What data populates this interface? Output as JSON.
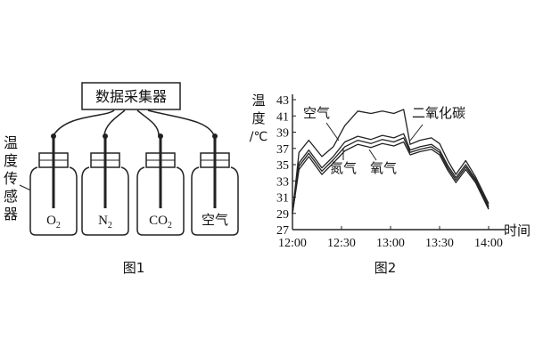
{
  "figure1": {
    "collector_label": "数据采集器",
    "sensor_label_chars": [
      "温",
      "度",
      "传",
      "感",
      "器"
    ],
    "bottles": [
      {
        "main": "O",
        "sub": "2"
      },
      {
        "main": "N",
        "sub": "2"
      },
      {
        "main": "CO",
        "sub": "2"
      },
      {
        "main": "空气",
        "sub": ""
      }
    ],
    "caption": "图1"
  },
  "figure2": {
    "caption": "图2",
    "chart_data": {
      "type": "line",
      "ylabel_chars": [
        "温",
        "度"
      ],
      "yunit": "/℃",
      "xlabel": "时间",
      "x_ticks": [
        "12:00",
        "12:30",
        "13:00",
        "13:30",
        "14:00"
      ],
      "y_ticks": [
        27,
        29,
        31,
        33,
        35,
        37,
        39,
        41,
        43
      ],
      "xlim": [
        "12:00",
        "14:00"
      ],
      "ylim": [
        27,
        43
      ],
      "series": [
        {
          "name": "二氧化碳",
          "color": "#222222",
          "points": [
            [
              "12:00",
              29.0
            ],
            [
              "12:04",
              36.5
            ],
            [
              "12:10",
              38.0
            ],
            [
              "12:18",
              36.0
            ],
            [
              "12:25",
              37.2
            ],
            [
              "12:32",
              39.8
            ],
            [
              "12:40",
              41.6
            ],
            [
              "12:48",
              41.3
            ],
            [
              "12:55",
              41.6
            ],
            [
              "13:02",
              41.3
            ],
            [
              "13:08",
              41.8
            ],
            [
              "13:12",
              37.5
            ],
            [
              "13:18",
              38.0
            ],
            [
              "13:25",
              38.3
            ],
            [
              "13:30",
              37.6
            ],
            [
              "13:35",
              35.5
            ],
            [
              "13:40",
              33.8
            ],
            [
              "13:46",
              35.5
            ],
            [
              "13:52",
              33.5
            ],
            [
              "14:00",
              30.2
            ]
          ]
        },
        {
          "name": "空气",
          "color": "#222222",
          "points": [
            [
              "12:00",
              29.0
            ],
            [
              "12:04",
              35.2
            ],
            [
              "12:10",
              36.8
            ],
            [
              "12:18",
              34.6
            ],
            [
              "12:25",
              36.0
            ],
            [
              "12:32",
              37.8
            ],
            [
              "12:40",
              38.5
            ],
            [
              "12:48",
              38.1
            ],
            [
              "12:55",
              38.6
            ],
            [
              "13:02",
              38.3
            ],
            [
              "13:08",
              38.8
            ],
            [
              "13:12",
              36.8
            ],
            [
              "13:18",
              37.2
            ],
            [
              "13:25",
              37.5
            ],
            [
              "13:30",
              36.8
            ],
            [
              "13:35",
              34.9
            ],
            [
              "13:40",
              33.4
            ],
            [
              "13:46",
              35.0
            ],
            [
              "13:52",
              33.2
            ],
            [
              "14:00",
              29.9
            ]
          ]
        },
        {
          "name": "氮气",
          "color": "#222222",
          "points": [
            [
              "12:00",
              29.0
            ],
            [
              "12:04",
              34.8
            ],
            [
              "12:10",
              36.4
            ],
            [
              "12:18",
              34.2
            ],
            [
              "12:25",
              35.6
            ],
            [
              "12:32",
              37.2
            ],
            [
              "12:40",
              38.0
            ],
            [
              "12:48",
              37.6
            ],
            [
              "12:55",
              38.1
            ],
            [
              "13:02",
              37.8
            ],
            [
              "13:08",
              38.3
            ],
            [
              "13:12",
              36.5
            ],
            [
              "13:18",
              36.9
            ],
            [
              "13:25",
              37.2
            ],
            [
              "13:30",
              36.5
            ],
            [
              "13:35",
              34.6
            ],
            [
              "13:40",
              33.1
            ],
            [
              "13:46",
              34.7
            ],
            [
              "13:52",
              33.0
            ],
            [
              "14:00",
              29.7
            ]
          ]
        },
        {
          "name": "氧气",
          "color": "#222222",
          "points": [
            [
              "12:00",
              29.0
            ],
            [
              "12:04",
              34.4
            ],
            [
              "12:10",
              36.0
            ],
            [
              "12:18",
              33.8
            ],
            [
              "12:25",
              35.2
            ],
            [
              "12:32",
              36.7
            ],
            [
              "12:40",
              37.5
            ],
            [
              "12:48",
              37.1
            ],
            [
              "12:55",
              37.6
            ],
            [
              "13:02",
              37.3
            ],
            [
              "13:08",
              37.8
            ],
            [
              "13:12",
              36.2
            ],
            [
              "13:18",
              36.6
            ],
            [
              "13:25",
              36.9
            ],
            [
              "13:30",
              36.2
            ],
            [
              "13:35",
              34.3
            ],
            [
              "13:40",
              32.8
            ],
            [
              "13:46",
              34.4
            ],
            [
              "13:52",
              32.8
            ],
            [
              "14:00",
              29.5
            ]
          ]
        }
      ]
    }
  }
}
